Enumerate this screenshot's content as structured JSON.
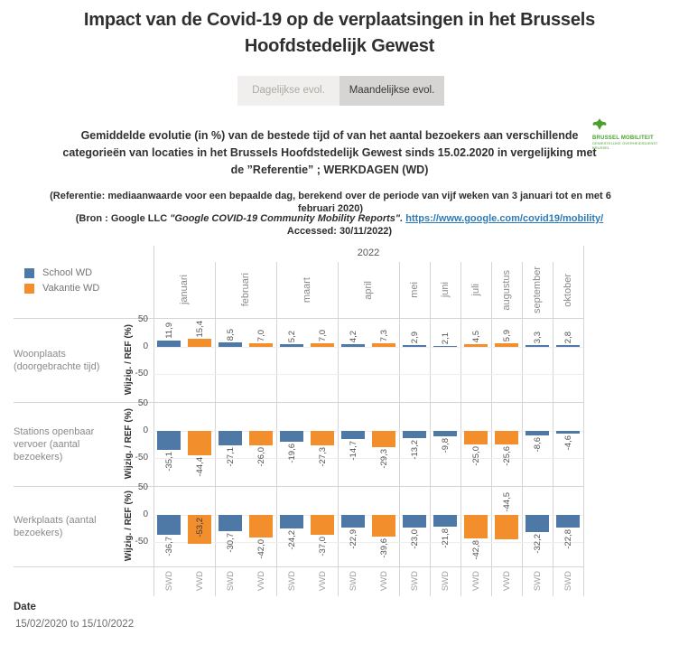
{
  "title": "Impact van de Covid-19 op de verplaatsingen in het Brussels Hoofdstedelijk Gewest",
  "tabs": [
    {
      "label": "Dagelijkse evol.",
      "active": false
    },
    {
      "label": "Maandelijkse evol.",
      "active": true
    }
  ],
  "logo": {
    "line1": "BRUSSEL MOBILITEIT",
    "line2": "GEWESTELIJKE OVERHEIDSDIENST BRUSSEL",
    "color": "#4ba02c"
  },
  "subtitle_lines": [
    "Gemiddelde evolutie (in %) van de bestede tijd of van het aantal bezoekers aan verschillende",
    "categorieën van locaties in het Brussels Hoofdstedelijk Gewest sinds 15.02.2020 in vergelijking met",
    "de ”Referentie”  ; WERKDAGEN (WD)"
  ],
  "notes": {
    "reference": "(Referentie: mediaanwaarde voor een bepaalde dag, berekend over de periode van vijf weken van 3 januari tot en met 6 februari 2020)",
    "source_prefix": "(Bron : Google LLC ",
    "source_title": "\"Google COVID-19 Community Mobility Reports\".",
    "source_link": "https://www.google.com/covid19/mobility/",
    "accessed": "Accessed: 30/11/2022)"
  },
  "legend": {
    "items": [
      {
        "label": "School WD",
        "color": "#4e79a7"
      },
      {
        "label": "Vakantie WD",
        "color": "#f28e2b"
      }
    ]
  },
  "footer": {
    "label": "Date",
    "value": "15/02/2020 to 15/10/2022"
  },
  "chart_data": {
    "type": "bar",
    "year": "2022",
    "y_axis_label": "Wijzig. / REF (%)",
    "y_ticks": [
      50,
      0,
      -50
    ],
    "ylim": [
      50,
      -100
    ],
    "unit": "%",
    "series": [
      {
        "code": "SWD",
        "name": "School WD",
        "color": "#4e79a7"
      },
      {
        "code": "VWD",
        "name": "Vakantie WD",
        "color": "#f28e2b"
      }
    ],
    "columns": [
      {
        "month": "januari",
        "slots": [
          "SWD",
          "VWD"
        ]
      },
      {
        "month": "februari",
        "slots": [
          "SWD",
          "VWD"
        ]
      },
      {
        "month": "maart",
        "slots": [
          "SWD",
          "VWD"
        ]
      },
      {
        "month": "april",
        "slots": [
          "SWD",
          "VWD"
        ]
      },
      {
        "month": "mei",
        "slots": [
          "SWD"
        ]
      },
      {
        "month": "juni",
        "slots": [
          "SWD"
        ]
      },
      {
        "month": "juli",
        "slots": [
          "VWD"
        ]
      },
      {
        "month": "augustus",
        "slots": [
          "VWD"
        ]
      },
      {
        "month": "september",
        "slots": [
          "SWD"
        ]
      },
      {
        "month": "oktober",
        "slots": [
          "SWD"
        ]
      }
    ],
    "rows": [
      {
        "label": "Woonplaats (doorgebrachte tijd)",
        "values": [
          11.9,
          15.4,
          8.5,
          7.0,
          5.2,
          7.0,
          4.2,
          7.3,
          2.9,
          2.1,
          4.5,
          5.9,
          3.3,
          2.8
        ]
      },
      {
        "label": "Stations openbaar vervoer (aantal bezoekers)",
        "values": [
          -35.1,
          -44.4,
          -27.1,
          -26.0,
          -19.6,
          -27.3,
          -14.7,
          -29.3,
          -13.2,
          -9.8,
          -25.0,
          -25.6,
          -8.6,
          -4.6
        ]
      },
      {
        "label": "Werkplaats (aantal bezoekers)",
        "values": [
          -36.7,
          -53.2,
          -30.7,
          -42.0,
          -24.2,
          -37.0,
          -22.9,
          -39.6,
          -23.0,
          -21.8,
          -42.8,
          -44.5,
          -32.2,
          -22.8
        ]
      }
    ],
    "value_label_overrides": [
      {
        "row": 2,
        "slot": 1,
        "placement": "inside"
      },
      {
        "row": 2,
        "slot": 11,
        "placement": "above-zero"
      }
    ]
  }
}
